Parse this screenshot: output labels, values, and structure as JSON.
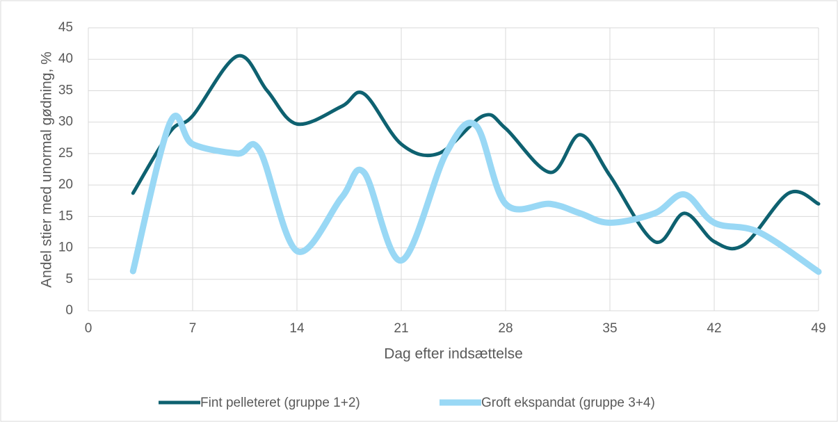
{
  "chart_data": {
    "type": "line",
    "xlabel": "Dag efter indsættelse",
    "ylabel": "Andel stier med unormal gødning, %",
    "xlim": [
      0,
      49
    ],
    "xticks": [
      0,
      7,
      14,
      21,
      28,
      35,
      42,
      49
    ],
    "ylim": [
      0,
      45
    ],
    "yticks": [
      0,
      5,
      10,
      15,
      20,
      25,
      30,
      35,
      40,
      45
    ],
    "grid": true,
    "legend": "bottom",
    "series": [
      {
        "name": "Fint pelleteret (gruppe 1+2)",
        "color": "#0e6170",
        "x": [
          3,
          5.5,
          7,
          10,
          12,
          14,
          17,
          18.5,
          21,
          23.5,
          26.5,
          28,
          31,
          33,
          35,
          38,
          40,
          42,
          44,
          47,
          49
        ],
        "values": [
          18.7,
          28.5,
          31,
          40.5,
          35,
          29.7,
          32.5,
          34.5,
          26.5,
          25,
          31,
          29,
          22,
          28,
          21.5,
          11,
          15.5,
          11,
          10.5,
          18.7,
          17
        ]
      },
      {
        "name": "Groft ekspandat (gruppe 3+4)",
        "color": "#99d8f5",
        "x": [
          3,
          5.5,
          7,
          10,
          11.5,
          14,
          17,
          18.5,
          21,
          24,
          26,
          28,
          31,
          33,
          35,
          38,
          40,
          42,
          45,
          49
        ],
        "values": [
          6.3,
          30,
          26.5,
          25,
          25.5,
          9.5,
          18,
          22,
          8,
          25,
          29.5,
          17,
          17,
          15.5,
          14,
          15.5,
          18.5,
          14,
          12.5,
          6.2
        ]
      }
    ]
  }
}
